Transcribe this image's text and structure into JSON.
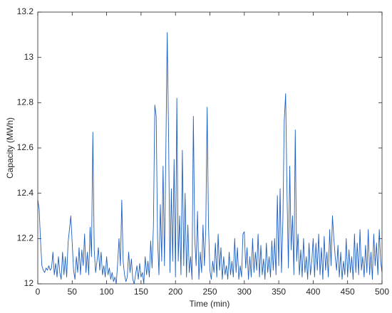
{
  "chart_data": {
    "type": "line",
    "x_label": "Time (min)",
    "y_label": "Capacity (MWh)",
    "xlim": [
      0,
      500
    ],
    "xticks": [
      0,
      50,
      100,
      150,
      200,
      250,
      300,
      350,
      400,
      450,
      500
    ],
    "ylim": [
      12,
      13.2
    ],
    "yticks": [
      12,
      12.2,
      12.4,
      12.6,
      12.8,
      13,
      13.2
    ],
    "grid": false,
    "x": [
      0,
      2,
      4,
      6,
      8,
      10,
      12,
      14,
      16,
      18,
      20,
      22,
      24,
      26,
      28,
      30,
      32,
      34,
      36,
      38,
      40,
      42,
      44,
      46,
      48,
      50,
      52,
      54,
      56,
      58,
      60,
      62,
      64,
      66,
      68,
      70,
      72,
      74,
      76,
      78,
      80,
      82,
      84,
      86,
      88,
      90,
      92,
      94,
      96,
      98,
      100,
      102,
      104,
      106,
      108,
      110,
      112,
      114,
      116,
      118,
      120,
      122,
      124,
      126,
      128,
      130,
      132,
      134,
      136,
      138,
      140,
      142,
      144,
      146,
      148,
      150,
      152,
      154,
      156,
      158,
      160,
      162,
      164,
      166,
      168,
      170,
      172,
      174,
      176,
      178,
      180,
      182,
      184,
      186,
      188,
      190,
      192,
      194,
      196,
      198,
      200,
      202,
      204,
      206,
      208,
      210,
      212,
      214,
      216,
      218,
      220,
      222,
      224,
      226,
      228,
      230,
      232,
      234,
      236,
      238,
      240,
      242,
      244,
      246,
      248,
      250,
      252,
      254,
      256,
      258,
      260,
      262,
      264,
      266,
      268,
      270,
      272,
      274,
      276,
      278,
      280,
      282,
      284,
      286,
      288,
      290,
      292,
      294,
      296,
      298,
      300,
      302,
      304,
      306,
      308,
      310,
      312,
      314,
      316,
      318,
      320,
      322,
      324,
      326,
      328,
      330,
      332,
      334,
      336,
      338,
      340,
      342,
      344,
      346,
      348,
      350,
      352,
      354,
      356,
      358,
      360,
      362,
      364,
      366,
      368,
      370,
      372,
      374,
      376,
      378,
      380,
      382,
      384,
      386,
      388,
      390,
      392,
      394,
      396,
      398,
      400,
      402,
      404,
      406,
      408,
      410,
      412,
      414,
      416,
      418,
      420,
      422,
      424,
      426,
      428,
      430,
      432,
      434,
      436,
      438,
      440,
      442,
      444,
      446,
      448,
      450,
      452,
      454,
      456,
      458,
      460,
      462,
      464,
      466,
      468,
      470,
      472,
      474,
      476,
      478,
      480,
      482,
      484,
      486,
      488,
      490,
      492,
      494,
      496,
      498,
      500
    ],
    "series": [
      {
        "color": "#1f5fbf",
        "values": [
          12.37,
          12.33,
          12.19,
          12.08,
          12.06,
          12.05,
          12.07,
          12.06,
          12.08,
          12.06,
          12.07,
          12.14,
          12.04,
          12.09,
          12.03,
          12.12,
          12.05,
          12.02,
          12.14,
          12.04,
          12.12,
          12.03,
          12.18,
          12.24,
          12.3,
          12.18,
          12.06,
          12.02,
          12.12,
          12.05,
          12.16,
          12.04,
          12.15,
          12.08,
          12.22,
          12.05,
          12.14,
          12.04,
          12.25,
          12.12,
          12.67,
          12.15,
          12.05,
          12.1,
          12.16,
          12.06,
          12.14,
          12.04,
          12.08,
          12.03,
          12.12,
          12.04,
          12.07,
          12.02,
          12.05,
          12.01,
          12.03,
          12.0,
          12.09,
          12.2,
          12.08,
          12.37,
          12.1,
          12.04,
          12.01,
          12.03,
          12.14,
          12.05,
          12.11,
          12.02,
          12.0,
          12.04,
          12.08,
          12.02,
          12.09,
          12.03,
          12.05,
          12.0,
          12.12,
          12.04,
          12.1,
          12.03,
          12.19,
          12.07,
          12.26,
          12.79,
          12.74,
          12.2,
          12.04,
          12.35,
          12.1,
          12.52,
          12.08,
          12.58,
          13.11,
          12.65,
          12.05,
          12.42,
          12.1,
          12.55,
          12.03,
          12.82,
          12.1,
          12.3,
          12.04,
          12.59,
          12.08,
          12.4,
          12.03,
          12.26,
          12.05,
          12.12,
          12.02,
          12.74,
          12.2,
          12.08,
          12.32,
          12.02,
          12.14,
          12.05,
          12.26,
          12.08,
          12.24,
          12.78,
          12.25,
          12.06,
          12.02,
          12.1,
          12.05,
          12.18,
          12.03,
          12.22,
          12.06,
          12.16,
          12.02,
          12.12,
          12.04,
          12.08,
          12.02,
          12.14,
          12.04,
          12.1,
          12.03,
          12.2,
          12.05,
          12.16,
          12.02,
          12.08,
          12.03,
          12.22,
          12.23,
          12.07,
          12.16,
          12.02,
          12.12,
          12.03,
          12.2,
          12.05,
          12.14,
          12.06,
          12.22,
          12.03,
          12.17,
          12.04,
          12.11,
          12.02,
          12.18,
          12.05,
          12.12,
          12.03,
          12.19,
          12.06,
          12.2,
          12.04,
          12.39,
          12.08,
          12.42,
          12.05,
          12.28,
          12.72,
          12.84,
          12.4,
          12.07,
          12.52,
          12.15,
          12.3,
          12.04,
          12.68,
          12.1,
          12.22,
          12.04,
          12.15,
          12.03,
          12.2,
          12.05,
          12.12,
          12.02,
          12.18,
          12.04,
          12.1,
          12.2,
          12.03,
          12.18,
          12.06,
          12.22,
          12.04,
          12.16,
          12.02,
          12.21,
          12.06,
          12.14,
          12.03,
          12.24,
          12.08,
          12.3,
          12.2,
          12.12,
          12.06,
          12.17,
          12.03,
          12.14,
          12.02,
          12.1,
          12.04,
          12.2,
          12.03,
          12.15,
          12.05,
          12.12,
          12.02,
          12.22,
          12.05,
          12.18,
          12.04,
          12.24,
          12.06,
          12.12,
          12.03,
          12.17,
          12.05,
          12.24,
          12.04,
          12.14,
          12.02,
          12.22,
          12.08,
          12.18,
          12.04,
          12.24,
          12.1,
          12.05
        ]
      }
    ]
  }
}
